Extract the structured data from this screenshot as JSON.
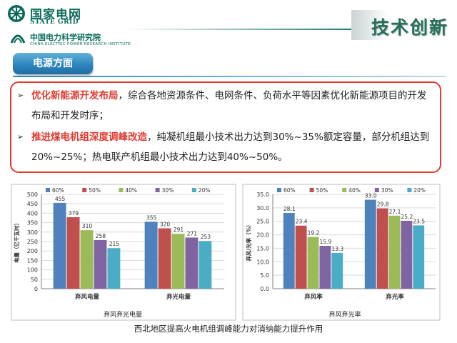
{
  "header": {
    "org_cn": "国家电网",
    "org_en": "STATE GRID",
    "institute_cn": "中国电力科学研究院",
    "institute_en": "CHINA ELECTRIC POWER RESEARCH INSTITUTE",
    "title": "技术创新"
  },
  "section": {
    "label": "电源方面"
  },
  "bullets": [
    {
      "highlight": "优化新能源开发布局",
      "text": "，综合各地资源条件、电网条件、负荷水平等因素优化新能源项目的开发布局和开发时序；"
    },
    {
      "highlight": "推进煤电机组深度调峰改造",
      "text": "，纯凝机组最小技术出力达到30%~35%额定容量，部分机组达到20%~25%；热电联产机组最小技术出力达到40%~50%。"
    }
  ],
  "caption": "西北地区提高火电机组调峰能力对消纳能力提升作用",
  "colors": {
    "series": [
      "#4f81bd",
      "#c0504d",
      "#9bbb59",
      "#8064a2",
      "#4bacc6"
    ],
    "accent_red": "#e03a2f",
    "brand_green": "#0a6b5a"
  },
  "chart_data": [
    {
      "type": "bar",
      "title": "弃风弃光电量",
      "ylabel": "电量（亿千瓦时）",
      "categories": [
        "弃风电量",
        "弃光电量"
      ],
      "ylim": [
        0,
        500
      ],
      "yticks": [
        0,
        50,
        100,
        150,
        200,
        250,
        300,
        350,
        400,
        450,
        500
      ],
      "legend_position": "top",
      "series": [
        {
          "name": "60%",
          "values": [
            455,
            355
          ]
        },
        {
          "name": "50%",
          "values": [
            379,
            320
          ]
        },
        {
          "name": "40%",
          "values": [
            310,
            291
          ]
        },
        {
          "name": "30%",
          "values": [
            258,
            271
          ]
        },
        {
          "name": "20%",
          "values": [
            215,
            253
          ]
        }
      ]
    },
    {
      "type": "bar",
      "title": "弃风弃光率",
      "ylabel": "弃风/光率（%）",
      "categories": [
        "弃风率",
        "弃光率"
      ],
      "ylim": [
        0,
        35
      ],
      "yticks": [
        0.0,
        5.0,
        10.0,
        15.0,
        20.0,
        25.0,
        30.0,
        35.0
      ],
      "ytick_labels": [
        "0.0",
        "5.0",
        "10.0",
        "15.0",
        "20.0",
        "25.0",
        "30.0",
        "35.0"
      ],
      "legend_position": "top",
      "series": [
        {
          "name": "60%",
          "values": [
            28.1,
            33.0
          ],
          "labels": [
            "28.1",
            "33.0"
          ]
        },
        {
          "name": "50%",
          "values": [
            23.4,
            29.8
          ],
          "labels": [
            "23.4",
            "29.8"
          ]
        },
        {
          "name": "40%",
          "values": [
            19.2,
            27.1
          ],
          "labels": [
            "19.2",
            "27.1"
          ]
        },
        {
          "name": "30%",
          "values": [
            15.9,
            25.2
          ],
          "labels": [
            "15.9",
            "25.2"
          ]
        },
        {
          "name": "20%",
          "values": [
            13.3,
            23.5
          ],
          "labels": [
            "13.3",
            "23.5"
          ]
        }
      ]
    }
  ]
}
